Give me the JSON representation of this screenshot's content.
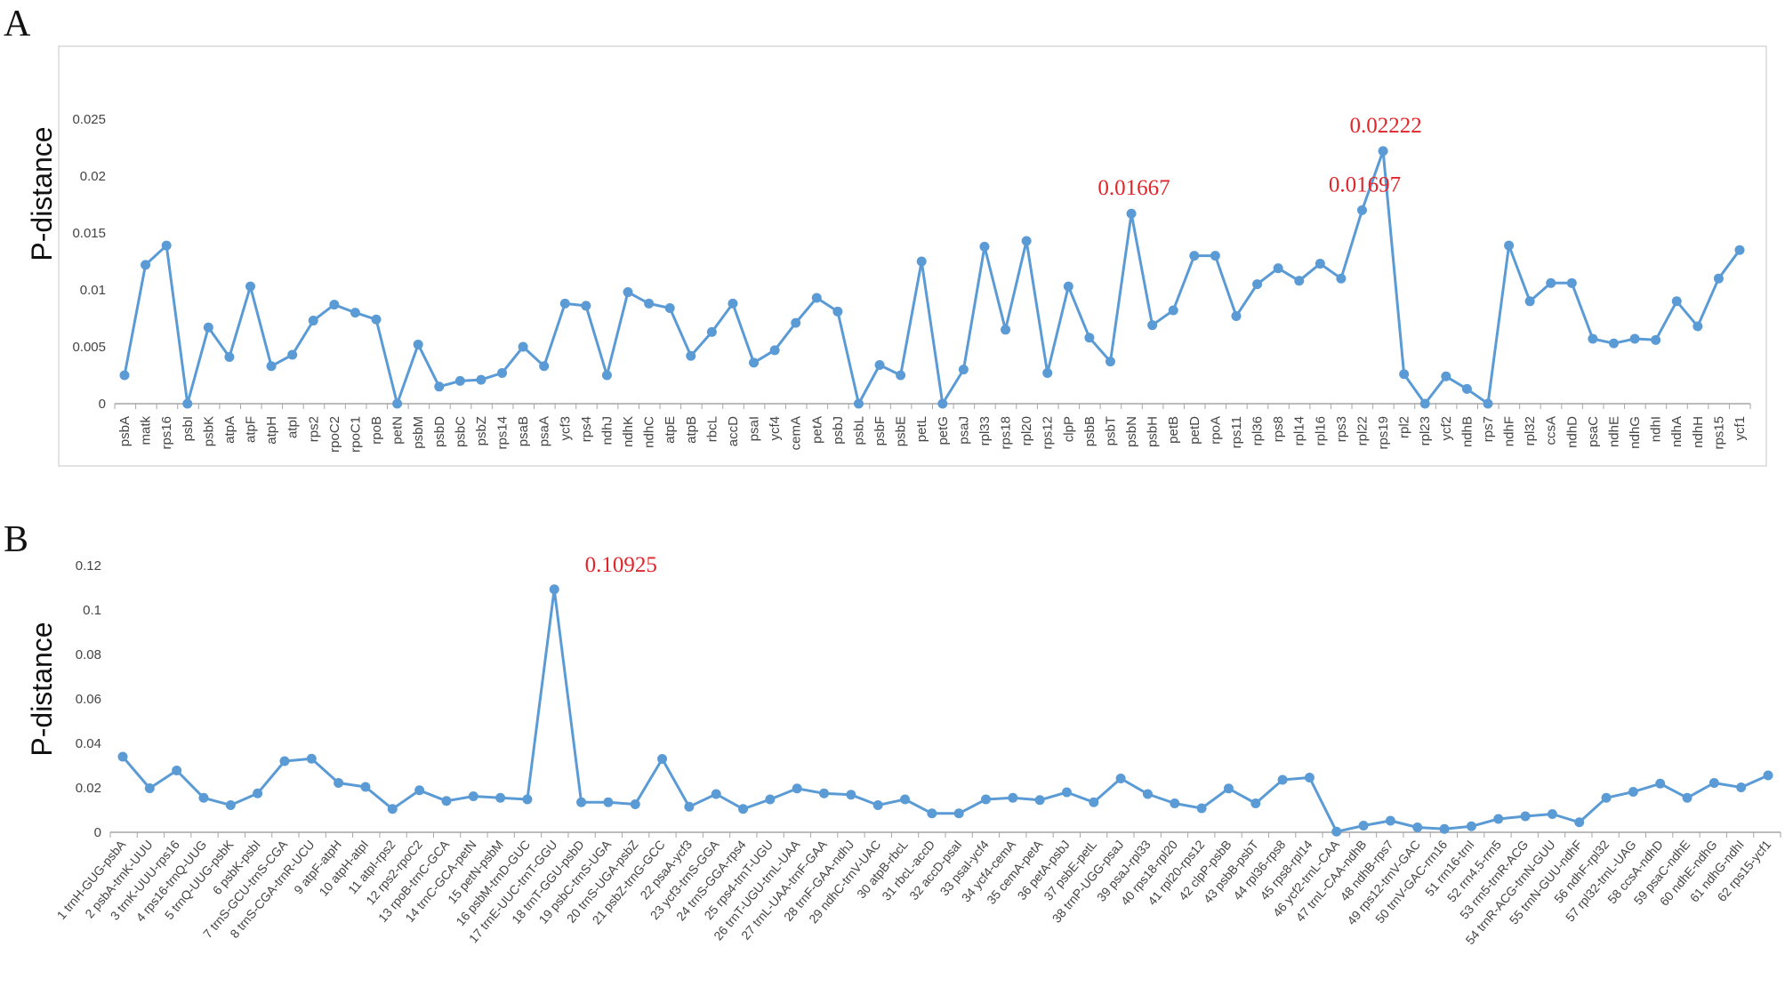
{
  "colors": {
    "series": "#5B9BD5",
    "annotation": "#E0262B",
    "axis": "#A6A6A6",
    "frame": "#D9D9D9"
  },
  "chart_data": [
    {
      "panel": "A",
      "type": "line",
      "ylabel": "P-distance",
      "ylim": [
        0,
        0.025
      ],
      "yticks": [
        "0",
        "0.005",
        "0.01",
        "0.015",
        "0.02",
        "0.025"
      ],
      "categories": [
        "psbA",
        "matk",
        "rps16",
        "psbI",
        "psbK",
        "atpA",
        "atpF",
        "atpH",
        "atpI",
        "rps2",
        "rpoC2",
        "rpoC1",
        "rpoB",
        "petN",
        "psbM",
        "psbD",
        "psbC",
        "psbZ",
        "rps14",
        "psaB",
        "psaA",
        "ycf3",
        "rps4",
        "ndhJ",
        "ndhK",
        "ndhC",
        "atpE",
        "atpB",
        "rbcL",
        "accD",
        "psaI",
        "ycf4",
        "cemA",
        "petA",
        "psbJ",
        "psbL",
        "psbF",
        "psbE",
        "petL",
        "petG",
        "psaJ",
        "rpl33",
        "rps18",
        "rpl20",
        "rps12",
        "clpP",
        "psbB",
        "psbT",
        "psbN",
        "psbH",
        "petB",
        "petD",
        "rpoA",
        "rps11",
        "rpl36",
        "rps8",
        "rpl14",
        "rpl16",
        "rps3",
        "rpl22",
        "rps19",
        "rpl2",
        "rpl23",
        "ycf2",
        "ndhB",
        "rps7",
        "ndhF",
        "rpl32",
        "ccsA",
        "ndhD",
        "psaC",
        "ndhE",
        "ndhG",
        "ndhI",
        "ndhA",
        "ndhH",
        "rps15",
        "ycf1"
      ],
      "values": [
        0.0025,
        0.0122,
        0.0139,
        0,
        0.0067,
        0.0041,
        0.0103,
        0.0033,
        0.0043,
        0.0073,
        0.0087,
        0.008,
        0.0074,
        0,
        0.0052,
        0.0015,
        0.002,
        0.0021,
        0.0027,
        0.005,
        0.0033,
        0.0088,
        0.0086,
        0.0025,
        0.0098,
        0.0088,
        0.0084,
        0.0042,
        0.0063,
        0.0088,
        0.0036,
        0.0047,
        0.0071,
        0.0093,
        0.0081,
        0,
        0.0034,
        0.0025,
        0.0125,
        0,
        0.003,
        0.0138,
        0.0065,
        0.0143,
        0.0027,
        0.0103,
        0.0058,
        0.0037,
        0.0167,
        0.0069,
        0.0082,
        0.013,
        0.013,
        0.0077,
        0.0105,
        0.0119,
        0.0108,
        0.0123,
        0.011,
        0.017,
        0.0222,
        0.0026,
        0,
        0.0024,
        0.0013,
        0,
        0.0139,
        0.009,
        0.0106,
        0.0106,
        0.0057,
        0.0053,
        0.0057,
        0.0056,
        0.009,
        0.0068,
        0.011,
        0.0135
      ],
      "annotations": [
        {
          "category": "psbN",
          "label": "0.01667"
        },
        {
          "category": "rpl22",
          "label": "0.01697"
        },
        {
          "category": "rps19",
          "label": "0.02222"
        }
      ]
    },
    {
      "panel": "B",
      "type": "line",
      "ylabel": "P-distance",
      "ylim": [
        0,
        0.12
      ],
      "yticks": [
        "0",
        "0.02",
        "0.04",
        "0.06",
        "0.08",
        "0.1",
        "0.12"
      ],
      "categories": [
        "1 trnH-GUG-psbA",
        "2 psbA-trnK-UUU",
        "3 trnK-UUU-rps16",
        "4 rps16-trnQ-UUG",
        "5 trnQ-UUG-psbK",
        "6 psbK-psbI",
        "7 trnS-GCU-trnS-CGA",
        "8 trnS-CGA-trnR-UCU",
        "9 atpF-atpH",
        "10 atpH-atpI",
        "11 atpI-rps2",
        "12 rps2-rpoC2",
        "13 rpoB-trnC-GCA",
        "14 trnC-GCA-petN",
        "15 petN-psbM",
        "16 psbM-trnD-GUC",
        "17 trnE-UUC-trnT-GGU",
        "18 trnT-GGU-psbD",
        "19 psbC-trnS-UGA",
        "20 trnS-UGA-psbZ",
        "21 psbZ-trnG-GCC",
        "22 psaA-ycf3",
        "23 ycf3-trnS-GGA",
        "24 trnS-GGA-rps4",
        "25 rps4-trnT-UGU",
        "26 trnT-UGU-trnL-UAA",
        "27 trnL-UAA-trnF-GAA",
        "28 trnF-GAA-ndhJ",
        "29 ndhC-trnV-UAC",
        "30 atpB-rbcL",
        "31 rbcL-accD",
        "32 accD-psaI",
        "33 psaI-ycf4",
        "34 ycf4-cemA",
        "35 cemA-petA",
        "36 petA-psbJ",
        "37 psbE-petL",
        "38 trnP-UGG-psaJ",
        "39 psaJ-rpl33",
        "40 rps18-rpl20",
        "41 rpl20-rps12",
        "42 clpP-psbB",
        "43 psbB-psbT",
        "44 rpl36-rps8",
        "45 rps8-rpl14",
        "46 ycf2-trnL-CAA",
        "47 trnL-CAA-ndhB",
        "48 ndhB-rps7",
        "49 rps12-trnV-GAC",
        "50 trnV-GAC-rrn16",
        "51 rrn16-trnI",
        "52 rrn4.5-rrn5",
        "53 rrn5-trnR-ACG",
        "54 trnR-ACG-trnN-GUU",
        "55 trnN-GUU-ndhF",
        "56 ndhF-rpl32",
        "57 rpl32-trnL-UAG",
        "58 ccsA-ndhD",
        "59 psaC-ndhE",
        "60 ndhE-ndhG",
        "61 ndhG-ndhI",
        "62 rps15-ycf1"
      ],
      "values": [
        0.034,
        0.0198,
        0.0278,
        0.0155,
        0.0122,
        0.0175,
        0.032,
        0.0331,
        0.0222,
        0.0204,
        0.0105,
        0.0189,
        0.0141,
        0.0162,
        0.0155,
        0.0148,
        0.1093,
        0.0135,
        0.0135,
        0.0126,
        0.033,
        0.0115,
        0.0172,
        0.0105,
        0.0148,
        0.0197,
        0.0175,
        0.0169,
        0.0122,
        0.0148,
        0.0085,
        0.0085,
        0.0148,
        0.0155,
        0.0145,
        0.018,
        0.0135,
        0.0242,
        0.0172,
        0.013,
        0.0108,
        0.0197,
        0.013,
        0.0236,
        0.0246,
        0.0003,
        0.003,
        0.0052,
        0.0022,
        0.0015,
        0.0027,
        0.006,
        0.0072,
        0.0082,
        0.0045,
        0.0155,
        0.0182,
        0.0219,
        0.0155,
        0.0222,
        0.0202,
        0.0256
      ],
      "annotations": [
        {
          "category": "17 trnE-UUC-trnT-GGU",
          "label": "0.10925"
        }
      ]
    }
  ]
}
